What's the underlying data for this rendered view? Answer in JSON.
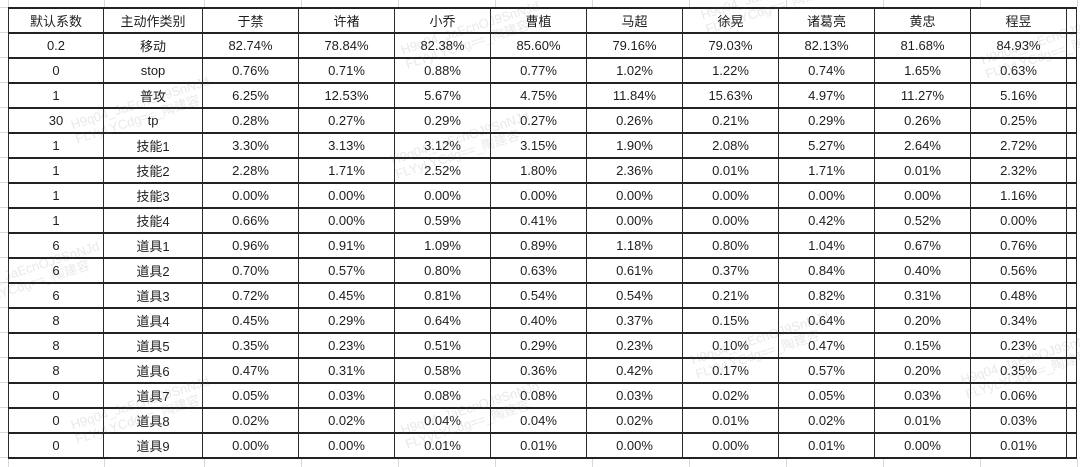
{
  "table": {
    "corner_header": "默认系数",
    "category_header": "主动作类别",
    "heroes": [
      "于禁",
      "许褚",
      "小乔",
      "曹植",
      "马超",
      "徐晃",
      "诸葛亮",
      "黄忠",
      "程昱"
    ],
    "rows": [
      {
        "coef": "0.2",
        "coef_red": true,
        "label": "移动",
        "red": true,
        "values": [
          "82.74%",
          "78.84%",
          "82.38%",
          "85.60%",
          "79.16%",
          "79.03%",
          "82.13%",
          "81.68%",
          "84.93%"
        ]
      },
      {
        "coef": "0",
        "coef_red": false,
        "label": "stop",
        "red": false,
        "values": [
          "0.76%",
          "0.71%",
          "0.88%",
          "0.77%",
          "1.02%",
          "1.22%",
          "0.74%",
          "1.65%",
          "0.63%"
        ]
      },
      {
        "coef": "1",
        "coef_red": false,
        "label": "普攻",
        "red": true,
        "values": [
          "6.25%",
          "12.53%",
          "5.67%",
          "4.75%",
          "11.84%",
          "15.63%",
          "4.97%",
          "11.27%",
          "5.16%"
        ]
      },
      {
        "coef": "30",
        "coef_red": true,
        "label": "tp",
        "red": false,
        "values": [
          "0.28%",
          "0.27%",
          "0.29%",
          "0.27%",
          "0.26%",
          "0.21%",
          "0.29%",
          "0.26%",
          "0.25%"
        ]
      },
      {
        "coef": "1",
        "coef_red": false,
        "label": "技能1",
        "red": false,
        "values": [
          "3.30%",
          "3.13%",
          "3.12%",
          "3.15%",
          "1.90%",
          "2.08%",
          "5.27%",
          "2.64%",
          "2.72%"
        ]
      },
      {
        "coef": "1",
        "coef_red": false,
        "label": "技能2",
        "red": false,
        "values": [
          "2.28%",
          "1.71%",
          "2.52%",
          "1.80%",
          "2.36%",
          "0.01%",
          "1.71%",
          "0.01%",
          "2.32%"
        ]
      },
      {
        "coef": "1",
        "coef_red": false,
        "label": "技能3",
        "red": false,
        "values": [
          "0.00%",
          "0.00%",
          "0.00%",
          "0.00%",
          "0.00%",
          "0.00%",
          "0.00%",
          "0.00%",
          "1.16%"
        ]
      },
      {
        "coef": "1",
        "coef_red": false,
        "label": "技能4",
        "red": false,
        "values": [
          "0.66%",
          "0.00%",
          "0.59%",
          "0.41%",
          "0.00%",
          "0.00%",
          "0.42%",
          "0.52%",
          "0.00%"
        ]
      },
      {
        "coef": "6",
        "coef_red": true,
        "label": "道具1",
        "red": false,
        "values": [
          "0.96%",
          "0.91%",
          "1.09%",
          "0.89%",
          "1.18%",
          "0.80%",
          "1.04%",
          "0.67%",
          "0.76%"
        ]
      },
      {
        "coef": "6",
        "coef_red": true,
        "label": "道具2",
        "red": false,
        "values": [
          "0.70%",
          "0.57%",
          "0.80%",
          "0.63%",
          "0.61%",
          "0.37%",
          "0.84%",
          "0.40%",
          "0.56%"
        ]
      },
      {
        "coef": "6",
        "coef_red": true,
        "label": "道具3",
        "red": false,
        "values": [
          "0.72%",
          "0.45%",
          "0.81%",
          "0.54%",
          "0.54%",
          "0.21%",
          "0.82%",
          "0.31%",
          "0.48%"
        ]
      },
      {
        "coef": "8",
        "coef_red": true,
        "label": "道具4",
        "red": false,
        "values": [
          "0.45%",
          "0.29%",
          "0.64%",
          "0.40%",
          "0.37%",
          "0.15%",
          "0.64%",
          "0.20%",
          "0.34%"
        ]
      },
      {
        "coef": "8",
        "coef_red": true,
        "label": "道具5",
        "red": false,
        "values": [
          "0.35%",
          "0.23%",
          "0.51%",
          "0.29%",
          "0.23%",
          "0.10%",
          "0.47%",
          "0.15%",
          "0.23%"
        ]
      },
      {
        "coef": "8",
        "coef_red": true,
        "label": "道具6",
        "red": false,
        "values": [
          "0.47%",
          "0.31%",
          "0.58%",
          "0.36%",
          "0.42%",
          "0.17%",
          "0.57%",
          "0.20%",
          "0.35%"
        ]
      },
      {
        "coef": "0",
        "coef_red": false,
        "label": "道具7",
        "red": false,
        "values": [
          "0.05%",
          "0.03%",
          "0.08%",
          "0.08%",
          "0.03%",
          "0.02%",
          "0.05%",
          "0.03%",
          "0.06%"
        ]
      },
      {
        "coef": "0",
        "coef_red": false,
        "label": "道具8",
        "red": false,
        "values": [
          "0.02%",
          "0.02%",
          "0.04%",
          "0.04%",
          "0.02%",
          "0.01%",
          "0.02%",
          "0.01%",
          "0.03%"
        ]
      },
      {
        "coef": "0",
        "coef_red": false,
        "label": "道具9",
        "red": false,
        "values": [
          "0.00%",
          "0.00%",
          "0.01%",
          "0.01%",
          "0.00%",
          "0.00%",
          "0.01%",
          "0.00%",
          "0.01%"
        ]
      }
    ]
  },
  "watermark": {
    "line1": "H9q04_JaEcnOJ9SnNJd",
    "line2": "FLYyLYCdg==_陶建容"
  },
  "colors": {
    "accent_red": "#e4544c",
    "label_bg": "#f6f0d6",
    "border_dark": "#222222",
    "grid_light": "#d9d9d9"
  }
}
